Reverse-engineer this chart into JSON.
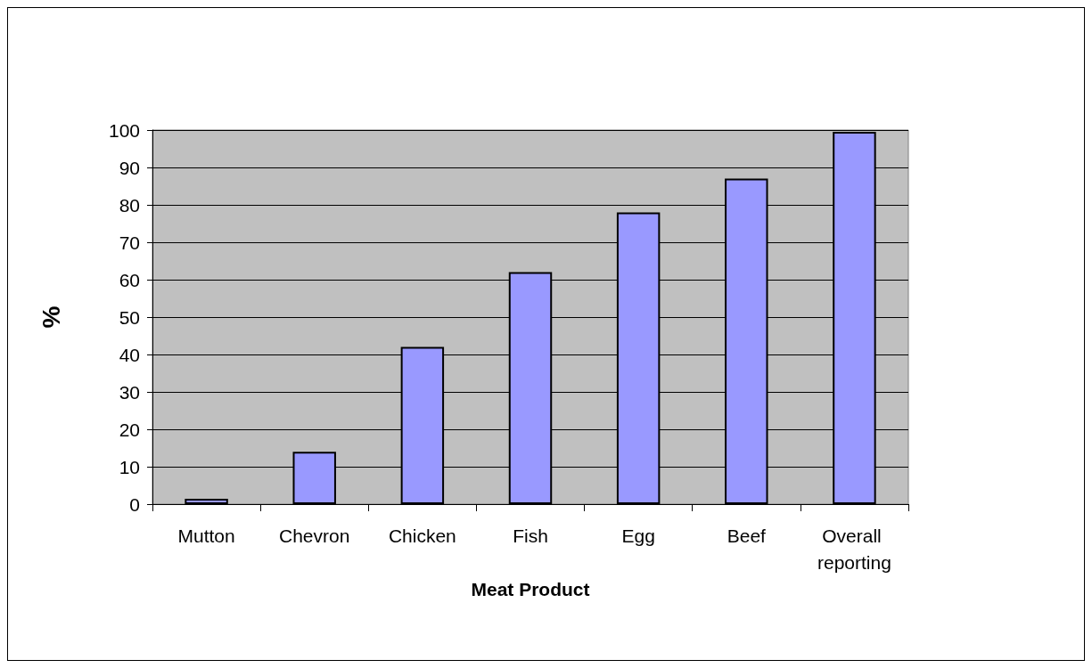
{
  "chart_data": {
    "type": "bar",
    "xlabel": "Meat Product",
    "ylabel": "%",
    "categories": [
      "Mutton",
      "Chevron",
      "Chicken",
      "Fish",
      "Egg",
      "Beef",
      "Overall reporting"
    ],
    "values": [
      1.4,
      14,
      42,
      62,
      78,
      87,
      99.5
    ],
    "color": "#9999ff",
    "ylim": [
      0,
      100
    ],
    "yticks": [
      0,
      10,
      20,
      30,
      40,
      50,
      60,
      70,
      80,
      90,
      100
    ],
    "grid": "y"
  }
}
